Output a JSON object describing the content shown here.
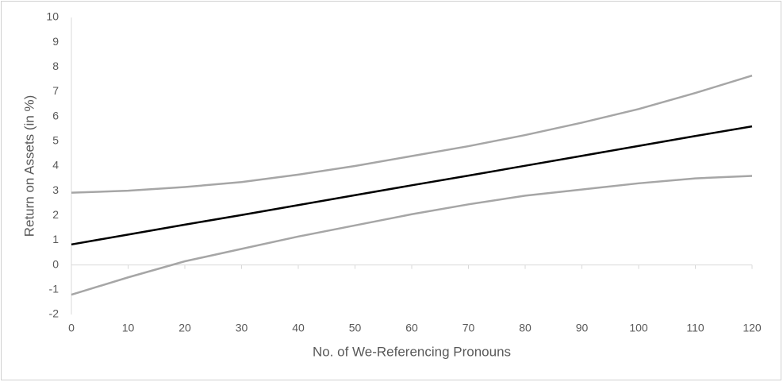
{
  "chart_data": {
    "type": "line",
    "x_label": "No. of We-Referencing Pronouns",
    "y_label": "Return on Assets (in %)",
    "x": [
      0,
      10,
      20,
      30,
      40,
      50,
      60,
      70,
      80,
      90,
      100,
      110,
      120
    ],
    "series": [
      {
        "color": "#a6a6a6",
        "values": [
          2.92,
          3.0,
          3.15,
          3.35,
          3.65,
          4.0,
          4.4,
          4.8,
          5.25,
          5.75,
          6.3,
          6.95,
          7.65
        ]
      },
      {
        "color": "#000000",
        "values": [
          0.83,
          1.23,
          1.63,
          2.02,
          2.42,
          2.82,
          3.22,
          3.61,
          4.01,
          4.41,
          4.81,
          5.21,
          5.6
        ]
      },
      {
        "color": "#a6a6a6",
        "values": [
          -1.2,
          -0.5,
          0.15,
          0.65,
          1.15,
          1.6,
          2.05,
          2.45,
          2.8,
          3.05,
          3.3,
          3.5,
          3.6
        ]
      }
    ],
    "xlim": [
      0,
      120
    ],
    "xticks": [
      0,
      10,
      20,
      30,
      40,
      50,
      60,
      70,
      80,
      90,
      100,
      110,
      120
    ],
    "ylim": [
      -2,
      10
    ],
    "yticks": [
      -2,
      -1,
      0,
      1,
      2,
      3,
      4,
      5,
      6,
      7,
      8,
      9,
      10
    ],
    "grid": false
  }
}
